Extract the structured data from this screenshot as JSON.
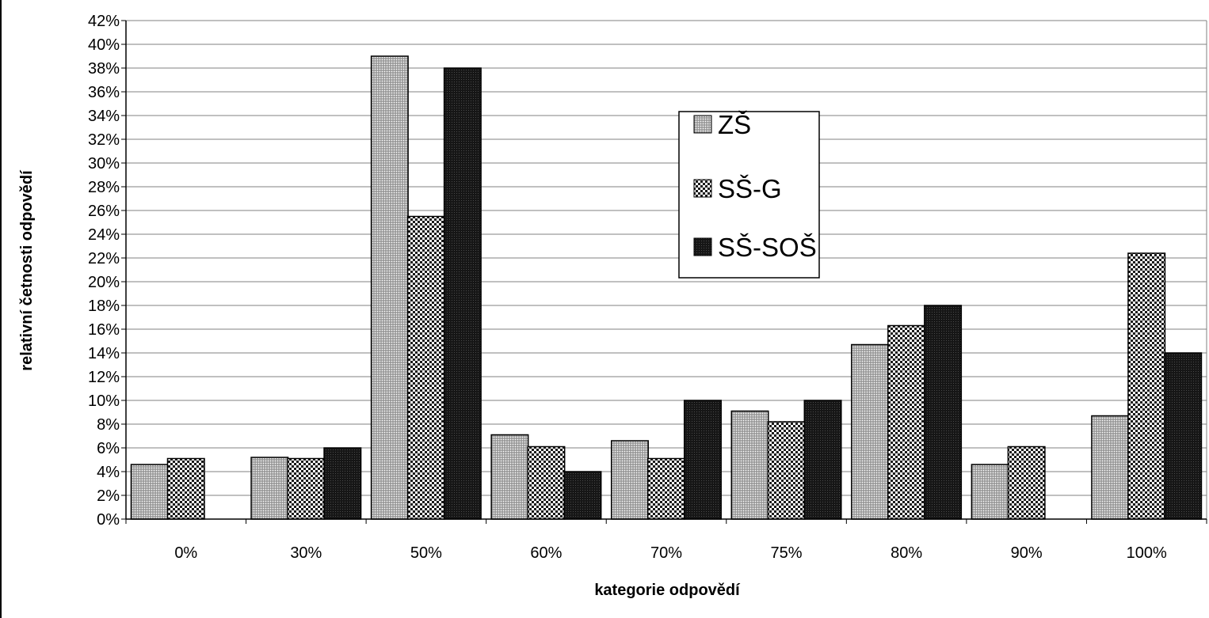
{
  "chart_data": {
    "type": "bar",
    "title": "",
    "xlabel": "kategorie odpovědí",
    "ylabel": "relativní četnosti odpovědí",
    "ylim": [
      0,
      42
    ],
    "y_tick_step": 2,
    "y_tick_suffix": "%",
    "grid": true,
    "legend_position": "top-center",
    "categories": [
      "0%",
      "30%",
      "50%",
      "60%",
      "70%",
      "75%",
      "80%",
      "90%",
      "100%"
    ],
    "series": [
      {
        "name": "ZŠ",
        "pattern": "fine-dots",
        "values": [
          4.6,
          5.2,
          39.0,
          7.1,
          6.6,
          9.1,
          14.7,
          4.6,
          8.7
        ]
      },
      {
        "name": "SŠ-G",
        "pattern": "checker",
        "values": [
          5.1,
          5.1,
          25.5,
          6.1,
          5.1,
          8.2,
          16.3,
          6.1,
          22.4
        ]
      },
      {
        "name": "SŠ-SOŠ",
        "pattern": "dark",
        "values": [
          0,
          6.0,
          38.0,
          4.0,
          10.0,
          10.0,
          18.0,
          0,
          14.0
        ]
      }
    ]
  }
}
